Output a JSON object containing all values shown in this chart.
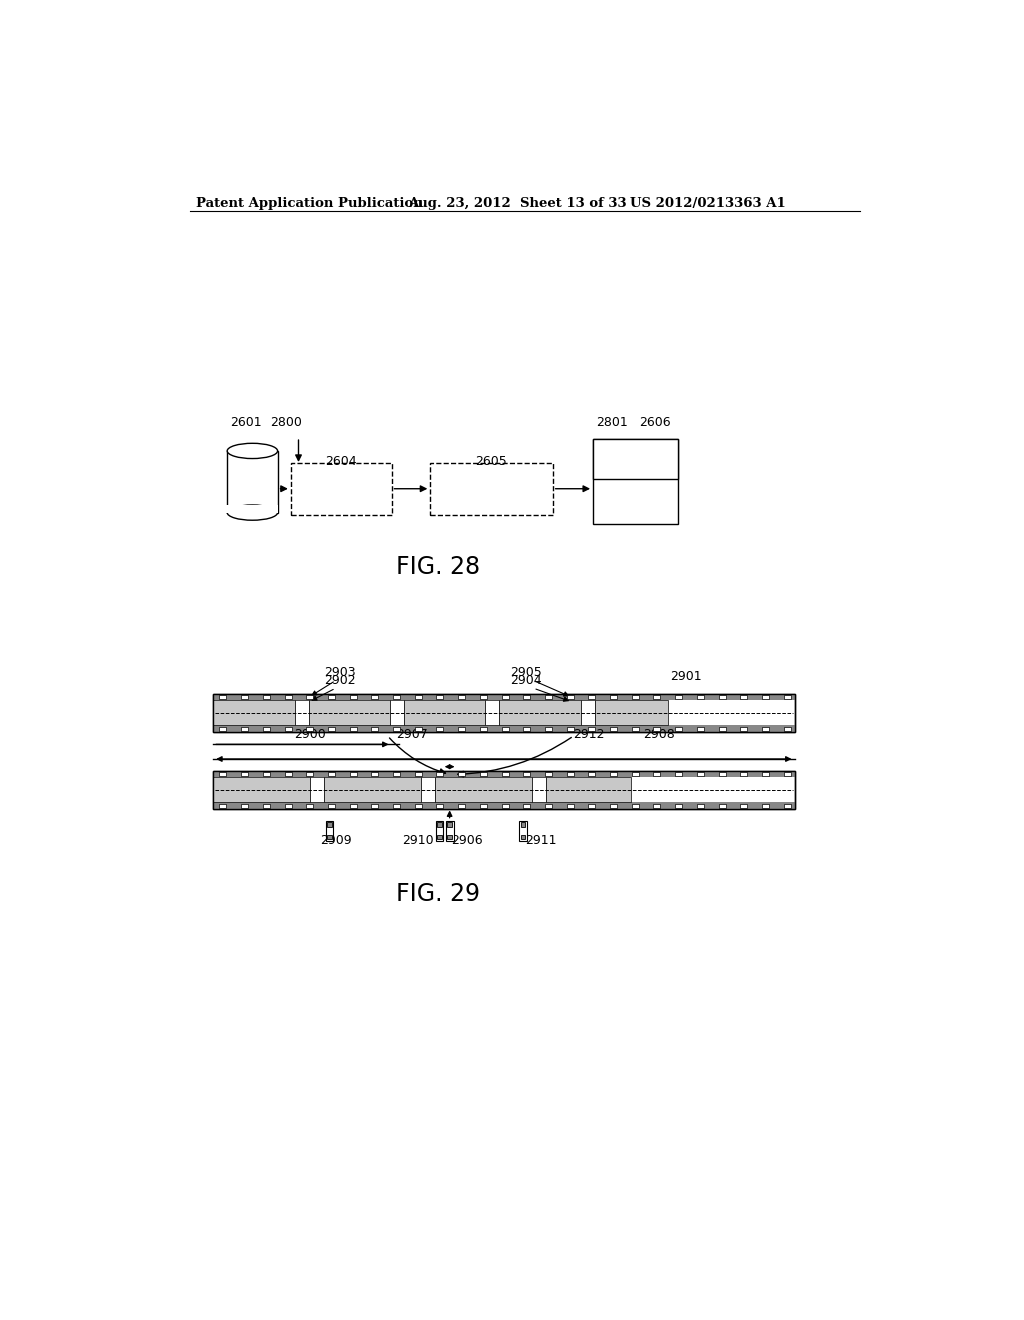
{
  "bg_color": "#ffffff",
  "header_left": "Patent Application Publication",
  "header_mid": "Aug. 23, 2012  Sheet 13 of 33",
  "header_right": "US 2012/0213363 A1",
  "fig28_title": "FIG. 28",
  "fig29_title": "FIG. 29",
  "lc": "#000000",
  "gray_fill": "#cccccc",
  "dark_fill": "#aaaaaa"
}
